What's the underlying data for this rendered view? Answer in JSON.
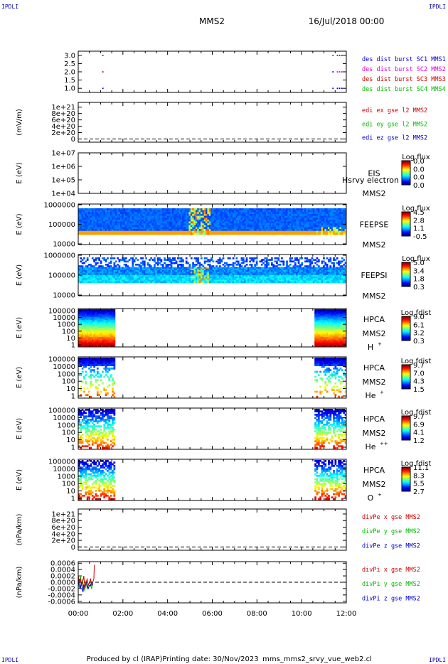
{
  "header": {
    "corner_label": "IPDLI",
    "title": "MMS2",
    "datetime": "16/Jul/2018 00:00"
  },
  "footer": {
    "produced_by": "Produced by cl (IRAP)",
    "printing_date": "Printing date: 30/Nov/2023",
    "filename": "mms_mms2_srvy_vue_web2.cl"
  },
  "x_axis": {
    "ticks": [
      "00:00",
      "02:00",
      "04:00",
      "06:00",
      "08:00",
      "10:00",
      "12:00"
    ],
    "range_hours": [
      0,
      12
    ]
  },
  "colors": {
    "sc1": "#0000cc",
    "sc2": "#dd00dd",
    "sc3": "#cc0000",
    "sc4": "#00bb00",
    "red": "#cc0000",
    "green": "#00bb00",
    "blue": "#0000cc"
  },
  "chart_data": [
    {
      "type": "scatter",
      "name_key": "burst",
      "ylabel": "",
      "ylim": [
        0.75,
        3.25
      ],
      "yticks": [
        "3.0",
        "2.5",
        "2.0",
        "1.5",
        "1.0"
      ],
      "ytick_values": [
        3.0,
        2.5,
        2.0,
        1.5,
        1.0
      ],
      "legend": [
        "des dist burst SC1 MMS1",
        "des dist burst SC2 MMS2",
        "des dist burst SC3 MMS3",
        "des dist burst SC4 MMS4"
      ],
      "legend_colors": [
        "#0000cc",
        "#dd00dd",
        "#cc0000",
        "#00bb00"
      ],
      "series": [
        {
          "y": 3.0,
          "color": "#cc0000",
          "x": [
            1.1,
            11.4,
            11.6,
            11.7,
            11.8
          ]
        },
        {
          "y": 2.0,
          "color": "#cc0000",
          "x": [
            1.1
          ]
        },
        {
          "y": 2.0,
          "color": "#0000cc",
          "x": [
            11.4
          ]
        },
        {
          "y": 2.0,
          "color": "#dd00dd",
          "x": [
            11.6,
            11.7,
            11.8
          ]
        },
        {
          "y": 1.0,
          "color": "#0000cc",
          "x": [
            1.1,
            11.4,
            11.6,
            11.7,
            11.8
          ]
        }
      ]
    },
    {
      "type": "line",
      "ylabel": "(mV/m)",
      "yticks": [
        "1e+21",
        "8e+20",
        "6e+20",
        "4e+20",
        "2e+20",
        "0"
      ],
      "ytick_values": [
        1e+21,
        8e+20,
        6e+20,
        4e+20,
        2e+20,
        0
      ],
      "ylim": [
        -1e+20,
        1.15e+21
      ],
      "zero_line": true,
      "legend": [
        "edi ex gse l2 MMS2",
        "edi ey gse l2 MMS2",
        "edi ez gse l2 MMS2"
      ],
      "legend_colors": [
        "#cc0000",
        "#00bb00",
        "#0000cc"
      ]
    },
    {
      "type": "heatmap",
      "ylabel": "E (eV)",
      "yticks": [
        "1e+07",
        "1e+06",
        "1e+05",
        "1e+04"
      ],
      "ylog": [
        4,
        7
      ],
      "instrument": [
        "EIS",
        "MMS2"
      ],
      "overlay_text": "Hsrvy electron to",
      "cbar_title": "Log flux",
      "cbar_ticks": [
        "0.0",
        "0.0",
        "0.0",
        "0.0"
      ],
      "kind": "empty"
    },
    {
      "type": "heatmap",
      "ylabel": "E (eV)",
      "yticks": [
        "1000000",
        "100000",
        "10000"
      ],
      "ylog": [
        4,
        6
      ],
      "instrument": [
        "FEEPSE",
        "MMS2"
      ],
      "cbar_title": "Log flux",
      "cbar_ticks": [
        "4.5",
        "2.8",
        "1.1",
        "-0.5"
      ],
      "kind": "feepse"
    },
    {
      "type": "heatmap",
      "ylabel": "E (eV)",
      "yticks": [
        "1000000",
        "100000",
        "10000"
      ],
      "ylog": [
        4,
        6
      ],
      "instrument": [
        "FEEPSI",
        "MMS2"
      ],
      "cbar_title": "Log flux",
      "cbar_ticks": [
        "5.0",
        "3.4",
        "1.8",
        "0.3"
      ],
      "kind": "feepsi"
    },
    {
      "type": "heatmap",
      "ylabel": "E (eV)",
      "yticks": [
        "100000",
        "10000",
        "1000",
        "100",
        "10",
        "1"
      ],
      "ylog": [
        0,
        5
      ],
      "instrument": [
        "HPCA",
        "MMS2",
        "H",
        "+"
      ],
      "cbar_title": "Log fdist",
      "cbar_ticks": [
        "9.0",
        "6.1",
        "3.2",
        "0.3"
      ],
      "kind": "hpca_h"
    },
    {
      "type": "heatmap",
      "ylabel": "E (eV)",
      "yticks": [
        "100000",
        "10000",
        "1000",
        "100",
        "10",
        "1"
      ],
      "ylog": [
        0,
        5
      ],
      "instrument": [
        "HPCA",
        "MMS2",
        "He",
        "+"
      ],
      "cbar_title": "Log fdist",
      "cbar_ticks": [
        "9.7",
        "7.0",
        "4.3",
        "1.5"
      ],
      "kind": "hpca_he"
    },
    {
      "type": "heatmap",
      "ylabel": "E (eV)",
      "yticks": [
        "100000",
        "10000",
        "1000",
        "100",
        "10",
        "1"
      ],
      "ylog": [
        0,
        5
      ],
      "instrument": [
        "HPCA",
        "MMS2",
        "He",
        "++"
      ],
      "cbar_title": "Log fdist",
      "cbar_ticks": [
        "9.7",
        "6.9",
        "4.1",
        "1.2"
      ],
      "kind": "hpca_he2"
    },
    {
      "type": "heatmap",
      "ylabel": "E (eV)",
      "yticks": [
        "100000",
        "10000",
        "1000",
        "100",
        "10",
        "1"
      ],
      "ylog": [
        0,
        5
      ],
      "instrument": [
        "HPCA",
        "MMS2",
        "O",
        "+"
      ],
      "cbar_title": "Log fdist",
      "cbar_ticks": [
        "11.1",
        "8.3",
        "5.5",
        "2.7"
      ],
      "kind": "hpca_o"
    },
    {
      "type": "line",
      "ylabel": "(nPa/km)",
      "yticks": [
        "1e+21",
        "8e+20",
        "6e+20",
        "4e+20",
        "2e+20",
        "0"
      ],
      "ytick_values": [
        1e+21,
        8e+20,
        6e+20,
        4e+20,
        2e+20,
        0
      ],
      "ylim": [
        -1e+20,
        1.15e+21
      ],
      "zero_line": true,
      "legend": [
        "divPe x gse MMS2",
        "divPe y gse MMS2",
        "divPe z gse MMS2"
      ],
      "legend_colors": [
        "#cc0000",
        "#00bb00",
        "#0000cc"
      ]
    },
    {
      "type": "line",
      "ylabel": "(nPa/km)",
      "yticks": [
        "0.0006",
        "0.0004",
        "0.0002",
        "0.0000",
        "-0.0002",
        "-0.0004",
        "-0.0006"
      ],
      "ytick_values": [
        0.0006,
        0.0004,
        0.0002,
        0.0,
        -0.0002,
        -0.0004,
        -0.0006
      ],
      "ylim": [
        -0.00065,
        0.00065
      ],
      "zero_line": true,
      "legend": [
        "divPi x gse MMS2",
        "divPi y gse MMS2",
        "divPi z gse MMS2"
      ],
      "legend_colors": [
        "#cc0000",
        "#00bb00",
        "#0000cc"
      ],
      "series": [
        {
          "color": "#00bb00",
          "x": [
            0.0,
            0.05,
            0.1,
            0.15,
            0.2,
            0.25,
            0.3,
            0.35,
            0.4,
            0.45,
            0.5,
            0.55,
            0.6,
            0.65
          ],
          "y": [
            0.0001,
            -0.0002,
            0.0002,
            -0.0001,
            0.0001,
            -0.0003,
            -0.0001,
            0.0,
            -0.0002,
            -0.0001,
            0.0,
            -0.0001,
            -0.0002,
            0.0
          ]
        },
        {
          "color": "#0000cc",
          "x": [
            0.0,
            0.05,
            0.1,
            0.15,
            0.2,
            0.25,
            0.3,
            0.35,
            0.4,
            0.45,
            0.5,
            0.55,
            0.6,
            0.65
          ],
          "y": [
            -0.0001,
            0.0001,
            -0.0002,
            0.0,
            -0.0003,
            -0.0001,
            -0.0002,
            0.0,
            -0.0001,
            -0.0002,
            -0.0001,
            -0.0001,
            0.0,
            -0.0001
          ]
        },
        {
          "color": "#cc0000",
          "x": [
            0.0,
            0.05,
            0.1,
            0.15,
            0.2,
            0.25,
            0.3,
            0.35,
            0.4,
            0.45,
            0.5,
            0.55,
            0.6,
            0.65,
            0.7,
            0.72
          ],
          "y": [
            0.0002,
            0.0,
            0.0001,
            -0.0001,
            0.0,
            0.0002,
            -0.0002,
            0.0,
            0.0001,
            -0.0001,
            0.0,
            0.0001,
            -0.0001,
            0.0,
            0.0001,
            0.00055
          ]
        }
      ]
    }
  ]
}
